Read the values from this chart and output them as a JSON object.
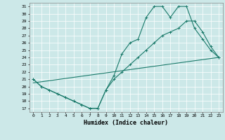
{
  "title": "",
  "xlabel": "Humidex (Indice chaleur)",
  "background_color": "#cce8e8",
  "line_color": "#1a7a6a",
  "xlim": [
    -0.5,
    23.5
  ],
  "ylim": [
    16.5,
    31.5
  ],
  "yticks": [
    17,
    18,
    19,
    20,
    21,
    22,
    23,
    24,
    25,
    26,
    27,
    28,
    29,
    30,
    31
  ],
  "xticks": [
    0,
    1,
    2,
    3,
    4,
    5,
    6,
    7,
    8,
    9,
    10,
    11,
    12,
    13,
    14,
    15,
    16,
    17,
    18,
    19,
    20,
    21,
    22,
    23
  ],
  "line1_x": [
    0,
    1,
    2,
    3,
    4,
    5,
    6,
    7,
    8,
    9,
    10,
    11,
    12,
    13,
    14,
    15,
    16,
    17,
    18,
    19,
    20,
    21,
    22,
    23
  ],
  "line1_y": [
    21.0,
    20.0,
    19.5,
    19.0,
    18.5,
    18.0,
    17.5,
    17.0,
    17.0,
    19.5,
    21.5,
    24.5,
    26.0,
    26.5,
    29.5,
    31.0,
    31.0,
    29.5,
    31.0,
    31.0,
    28.0,
    26.5,
    25.0,
    24.0
  ],
  "line2_x": [
    0,
    1,
    2,
    3,
    4,
    5,
    6,
    7,
    8,
    9,
    10,
    11,
    12,
    13,
    14,
    15,
    16,
    17,
    18,
    19,
    20,
    21,
    22,
    23
  ],
  "line2_y": [
    21.0,
    20.0,
    19.5,
    19.0,
    18.5,
    18.0,
    17.5,
    17.0,
    17.0,
    19.5,
    21.0,
    22.0,
    23.0,
    24.0,
    25.0,
    26.0,
    27.0,
    27.5,
    28.0,
    29.0,
    29.0,
    27.5,
    25.5,
    24.0
  ],
  "line3_x": [
    0,
    23
  ],
  "line3_y": [
    20.5,
    24.0
  ]
}
